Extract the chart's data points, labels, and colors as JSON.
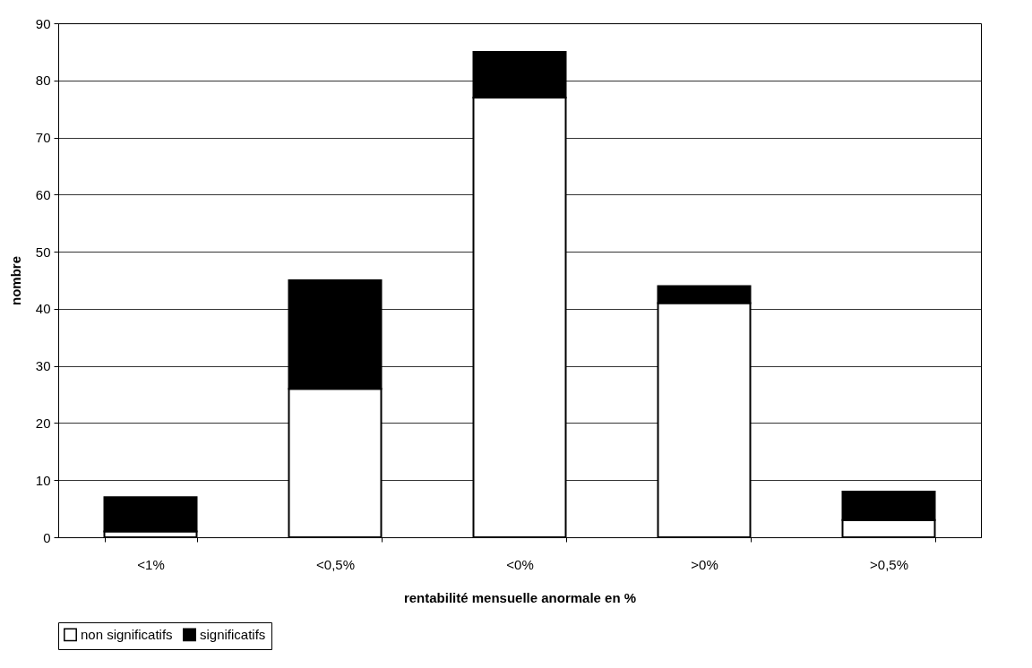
{
  "chart_data": {
    "type": "bar",
    "stacked": true,
    "xlabel": "rentabilité mensuelle anormale en %",
    "ylabel": "nombre",
    "categories": [
      "<1%",
      "<0,5%",
      "<0%",
      ">0%",
      ">0,5%"
    ],
    "series": [
      {
        "name": "non significatifs",
        "color": "#ffffff",
        "values": [
          1,
          26,
          77,
          41,
          3
        ]
      },
      {
        "name": "significatifs",
        "color": "#000000",
        "values": [
          6,
          19,
          8,
          3,
          5
        ]
      }
    ],
    "ylim": [
      0,
      90
    ],
    "yticks": [
      0,
      10,
      20,
      30,
      40,
      50,
      60,
      70,
      80,
      90
    ],
    "grid": "y",
    "legend": "bottom"
  }
}
